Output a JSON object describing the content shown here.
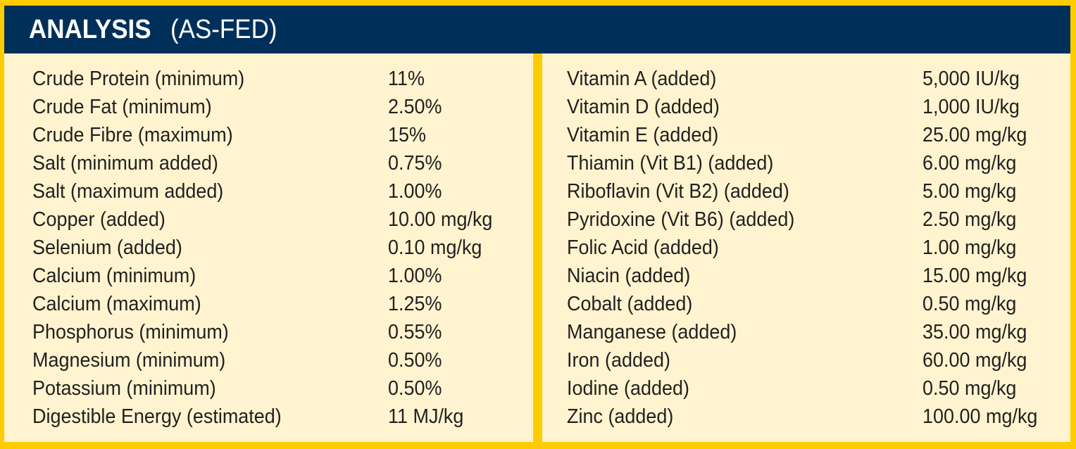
{
  "header": {
    "title_bold": "ANALYSIS",
    "title_rest": "(AS-FED)"
  },
  "colors": {
    "header_bg": "#00305a",
    "border": "#ffcc00",
    "panel_bg": "#fff4cf",
    "text": "#231f20"
  },
  "left_table": [
    {
      "label": "Crude Protein (minimum)",
      "value": "11%"
    },
    {
      "label": "Crude Fat (minimum)",
      "value": "2.50%"
    },
    {
      "label": "Crude Fibre (maximum)",
      "value": "15%"
    },
    {
      "label": "Salt (minimum added)",
      "value": "0.75%"
    },
    {
      "label": "Salt (maximum added)",
      "value": "1.00%"
    },
    {
      "label": "Copper (added)",
      "value": "10.00 mg/kg"
    },
    {
      "label": "Selenium (added)",
      "value": "0.10 mg/kg"
    },
    {
      "label": "Calcium (minimum)",
      "value": "1.00%"
    },
    {
      "label": "Calcium (maximum)",
      "value": "1.25%"
    },
    {
      "label": "Phosphorus (minimum)",
      "value": "0.55%"
    },
    {
      "label": "Magnesium (minimum)",
      "value": "0.50%"
    },
    {
      "label": "Potassium (minimum)",
      "value": "0.50%"
    },
    {
      "label": "Digestible Energy (estimated)",
      "value": "11 MJ/kg"
    }
  ],
  "right_table": [
    {
      "label": "Vitamin A (added)",
      "value": "5,000 IU/kg"
    },
    {
      "label": "Vitamin D (added)",
      "value": "1,000 IU/kg"
    },
    {
      "label": "Vitamin E (added)",
      "value": "25.00 mg/kg"
    },
    {
      "label": "Thiamin (Vit B1) (added)",
      "value": "6.00 mg/kg"
    },
    {
      "label": "Riboflavin (Vit B2) (added)",
      "value": "5.00 mg/kg"
    },
    {
      "label": "Pyridoxine (Vit B6) (added)",
      "value": "2.50 mg/kg"
    },
    {
      "label": "Folic Acid (added)",
      "value": "1.00 mg/kg"
    },
    {
      "label": "Niacin (added)",
      "value": "15.00 mg/kg"
    },
    {
      "label": "Cobalt (added)",
      "value": "0.50 mg/kg"
    },
    {
      "label": "Manganese (added)",
      "value": "35.00 mg/kg"
    },
    {
      "label": "Iron (added)",
      "value": "60.00 mg/kg"
    },
    {
      "label": "Iodine (added)",
      "value": "0.50 mg/kg"
    },
    {
      "label": "Zinc (added)",
      "value": "100.00 mg/kg"
    }
  ]
}
